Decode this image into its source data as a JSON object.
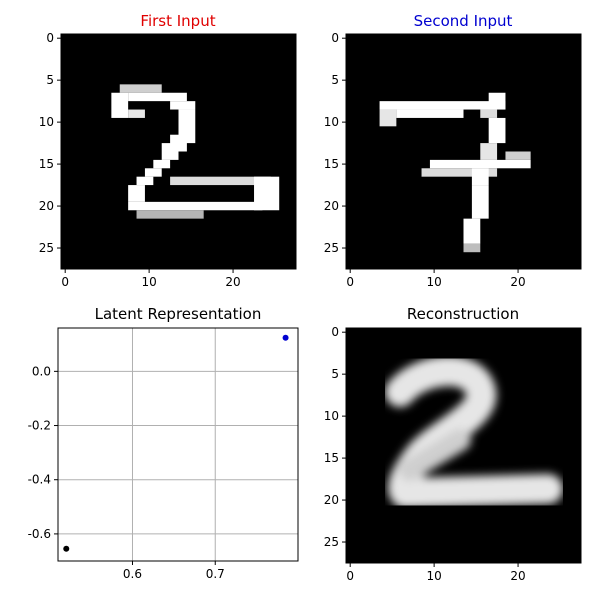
{
  "colors": {
    "first": "#e00000",
    "second": "#0000d0",
    "text": "#000000",
    "grid": "#b0b0b0"
  },
  "panels": {
    "first_input": {
      "title": "First Input",
      "type": "image",
      "grid_size": 28,
      "x_ticks": [
        "0",
        "10",
        "20"
      ],
      "y_ticks": [
        "0",
        "5",
        "10",
        "15",
        "20",
        "25"
      ],
      "content": "handwritten digit 2"
    },
    "second_input": {
      "title": "Second Input",
      "type": "image",
      "grid_size": 28,
      "x_ticks": [
        "0",
        "10",
        "20"
      ],
      "y_ticks": [
        "0",
        "5",
        "10",
        "15",
        "20",
        "25"
      ],
      "content": "handwritten digit 7"
    },
    "latent": {
      "title": "Latent Representation",
      "x_ticks": [
        "0.6",
        "0.7"
      ],
      "y_ticks": [
        "0.0",
        "-0.2",
        "-0.4",
        "-0.6"
      ]
    },
    "reconstruction": {
      "title": "Reconstruction",
      "type": "image",
      "grid_size": 28,
      "x_ticks": [
        "0",
        "10",
        "20"
      ],
      "y_ticks": [
        "0",
        "5",
        "10",
        "15",
        "20",
        "25"
      ],
      "content": "blurred digit 2"
    }
  },
  "chart_data": [
    {
      "type": "heatmap",
      "title": "First Input",
      "xlim": [
        -0.5,
        27.5
      ],
      "ylim": [
        27.5,
        -0.5
      ],
      "colormap": "gray"
    },
    {
      "type": "heatmap",
      "title": "Second Input",
      "xlim": [
        -0.5,
        27.5
      ],
      "ylim": [
        27.5,
        -0.5
      ],
      "colormap": "gray"
    },
    {
      "type": "scatter",
      "title": "Latent Representation",
      "xlim": [
        0.51,
        0.8
      ],
      "ylim": [
        -0.7,
        0.16
      ],
      "grid": true,
      "series": [
        {
          "color": "#000000",
          "points": [
            {
              "x": 0.52,
              "y": -0.655
            }
          ]
        },
        {
          "color": "#0000d0",
          "points": [
            {
              "x": 0.785,
              "y": 0.124
            }
          ]
        }
      ]
    },
    {
      "type": "heatmap",
      "title": "Reconstruction",
      "xlim": [
        -0.5,
        27.5
      ],
      "ylim": [
        27.5,
        -0.5
      ],
      "colormap": "gray"
    }
  ]
}
